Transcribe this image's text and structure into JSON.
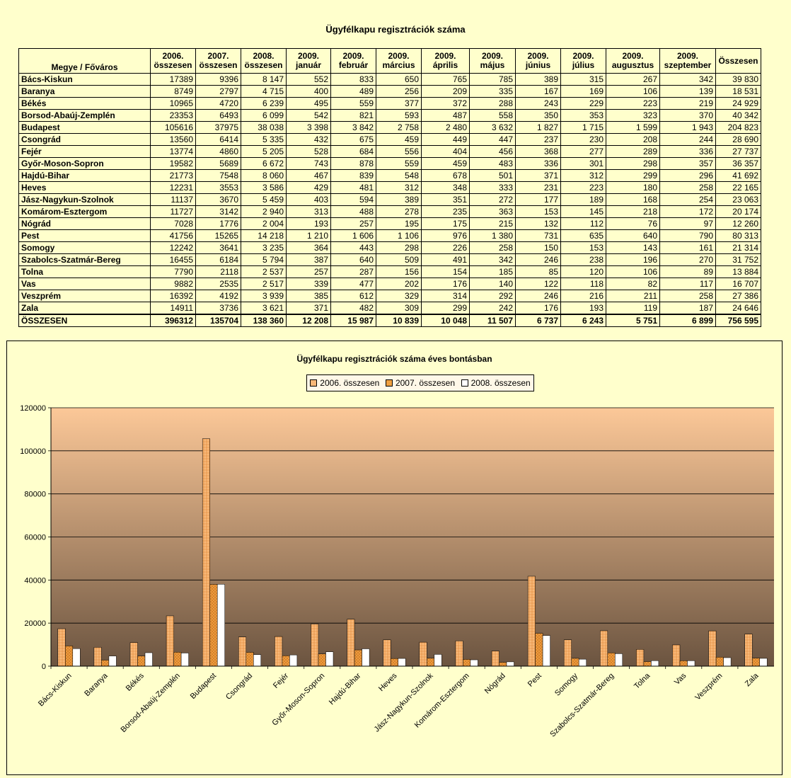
{
  "table": {
    "title": "Ügyfélkapu regisztrációk száma",
    "headers": [
      [
        "Megye / Főváros"
      ],
      [
        "2006.",
        "összesen"
      ],
      [
        "2007.",
        "összesen"
      ],
      [
        "2008.",
        "összesen"
      ],
      [
        "2009.",
        "január"
      ],
      [
        "2009.",
        "február"
      ],
      [
        "2009.",
        "március"
      ],
      [
        "2009.",
        "április"
      ],
      [
        "2009.",
        "május"
      ],
      [
        "2009.",
        "június"
      ],
      [
        "2009.",
        "július"
      ],
      [
        "2009.",
        "augusztus"
      ],
      [
        "2009.",
        "szeptember"
      ],
      [
        "Összesen"
      ]
    ],
    "rows": [
      [
        "Bács-Kiskun",
        "17389",
        "9396",
        "8 147",
        "552",
        "833",
        "650",
        "765",
        "785",
        "389",
        "315",
        "267",
        "342",
        "39 830"
      ],
      [
        "Baranya",
        "8749",
        "2797",
        "4 715",
        "400",
        "489",
        "256",
        "209",
        "335",
        "167",
        "169",
        "106",
        "139",
        "18 531"
      ],
      [
        "Békés",
        "10965",
        "4720",
        "6 239",
        "495",
        "559",
        "377",
        "372",
        "288",
        "243",
        "229",
        "223",
        "219",
        "24 929"
      ],
      [
        "Borsod-Abaúj-Zemplén",
        "23353",
        "6493",
        "6 099",
        "542",
        "821",
        "593",
        "487",
        "558",
        "350",
        "353",
        "323",
        "370",
        "40 342"
      ],
      [
        "Budapest",
        "105616",
        "37975",
        "38 038",
        "3 398",
        "3 842",
        "2 758",
        "2 480",
        "3 632",
        "1 827",
        "1 715",
        "1 599",
        "1 943",
        "204 823"
      ],
      [
        "Csongrád",
        "13560",
        "6414",
        "5 335",
        "432",
        "675",
        "459",
        "449",
        "447",
        "237",
        "230",
        "208",
        "244",
        "28 690"
      ],
      [
        "Fejér",
        "13774",
        "4860",
        "5 205",
        "528",
        "684",
        "556",
        "404",
        "456",
        "368",
        "277",
        "289",
        "336",
        "27 737"
      ],
      [
        "Győr-Moson-Sopron",
        "19582",
        "5689",
        "6 672",
        "743",
        "878",
        "559",
        "459",
        "483",
        "336",
        "301",
        "298",
        "357",
        "36 357"
      ],
      [
        "Hajdú-Bihar",
        "21773",
        "7548",
        "8 060",
        "467",
        "839",
        "548",
        "678",
        "501",
        "371",
        "312",
        "299",
        "296",
        "41 692"
      ],
      [
        "Heves",
        "12231",
        "3553",
        "3 586",
        "429",
        "481",
        "312",
        "348",
        "333",
        "231",
        "223",
        "180",
        "258",
        "22 165"
      ],
      [
        "Jász-Nagykun-Szolnok",
        "11137",
        "3670",
        "5 459",
        "403",
        "594",
        "389",
        "351",
        "272",
        "177",
        "189",
        "168",
        "254",
        "23 063"
      ],
      [
        "Komárom-Esztergom",
        "11727",
        "3142",
        "2 940",
        "313",
        "488",
        "278",
        "235",
        "363",
        "153",
        "145",
        "218",
        "172",
        "20 174"
      ],
      [
        "Nógrád",
        "7028",
        "1776",
        "2 004",
        "193",
        "257",
        "195",
        "175",
        "215",
        "132",
        "112",
        "76",
        "97",
        "12 260"
      ],
      [
        "Pest",
        "41756",
        "15265",
        "14 218",
        "1 210",
        "1 606",
        "1 106",
        "976",
        "1 380",
        "731",
        "635",
        "640",
        "790",
        "80 313"
      ],
      [
        "Somogy",
        "12242",
        "3641",
        "3 235",
        "364",
        "443",
        "298",
        "226",
        "258",
        "150",
        "153",
        "143",
        "161",
        "21 314"
      ],
      [
        "Szabolcs-Szatmár-Bereg",
        "16455",
        "6184",
        "5 794",
        "387",
        "640",
        "509",
        "491",
        "342",
        "246",
        "238",
        "196",
        "270",
        "31 752"
      ],
      [
        "Tolna",
        "7790",
        "2118",
        "2 537",
        "257",
        "287",
        "156",
        "154",
        "185",
        "85",
        "120",
        "106",
        "89",
        "13 884"
      ],
      [
        "Vas",
        "9882",
        "2535",
        "2 517",
        "339",
        "477",
        "202",
        "176",
        "140",
        "122",
        "118",
        "82",
        "117",
        "16 707"
      ],
      [
        "Veszprém",
        "16392",
        "4192",
        "3 939",
        "385",
        "612",
        "329",
        "314",
        "292",
        "246",
        "216",
        "211",
        "258",
        "27 386"
      ],
      [
        "Zala",
        "14911",
        "3736",
        "3 621",
        "371",
        "482",
        "309",
        "299",
        "242",
        "176",
        "193",
        "119",
        "187",
        "24 646"
      ]
    ],
    "total": [
      "ÖSSZESEN",
      "396312",
      "135704",
      "138 360",
      "12 208",
      "15 987",
      "10 839",
      "10 048",
      "11 507",
      "6 737",
      "6 243",
      "5 751",
      "6 899",
      "756 595"
    ]
  },
  "colors": {
    "page_bg": "#ffffcc",
    "plot_top": "#fcc898",
    "plot_bottom": "#6b5440",
    "series_2006": "#f8b878",
    "series_2007": "#f0a040",
    "series_2008": "#ffffff"
  },
  "chart_data": {
    "type": "bar",
    "title": "Ügyfélkapu regisztrációk száma éves bontásban",
    "categories": [
      "Bács-Kiskun",
      "Baranya",
      "Békés",
      "Borsod-Abaúj-Zemplén",
      "Budapest",
      "Csongrád",
      "Fejér",
      "Győr-Moson-Sopron",
      "Hajdú-Bihar",
      "Heves",
      "Jász-Nagykun-Szolnok",
      "Komárom-Esztergom",
      "Nógrád",
      "Pest",
      "Somogy",
      "Szabolcs-Szatmár-Bereg",
      "Tolna",
      "Vas",
      "Veszprém",
      "Zala"
    ],
    "series": [
      {
        "name": "2006. összesen",
        "values": [
          17389,
          8749,
          10965,
          23353,
          105616,
          13560,
          13774,
          19582,
          21773,
          12231,
          11137,
          11727,
          7028,
          41756,
          12242,
          16455,
          7790,
          9882,
          16392,
          14911
        ]
      },
      {
        "name": "2007. összesen",
        "values": [
          9396,
          2797,
          4720,
          6493,
          37975,
          6414,
          4860,
          5689,
          7548,
          3553,
          3670,
          3142,
          1776,
          15265,
          3641,
          6184,
          2118,
          2535,
          4192,
          3736
        ]
      },
      {
        "name": "2008. összesen",
        "values": [
          8147,
          4715,
          6239,
          6099,
          38038,
          5335,
          5205,
          6672,
          8060,
          3586,
          5459,
          2940,
          2004,
          14218,
          3235,
          5794,
          2537,
          2517,
          3939,
          3621
        ]
      }
    ],
    "ylim": [
      0,
      120000
    ],
    "yticks": [
      "0",
      "20000",
      "40000",
      "60000",
      "80000",
      "100000",
      "120000"
    ],
    "grid": true,
    "legend": "top-center"
  }
}
